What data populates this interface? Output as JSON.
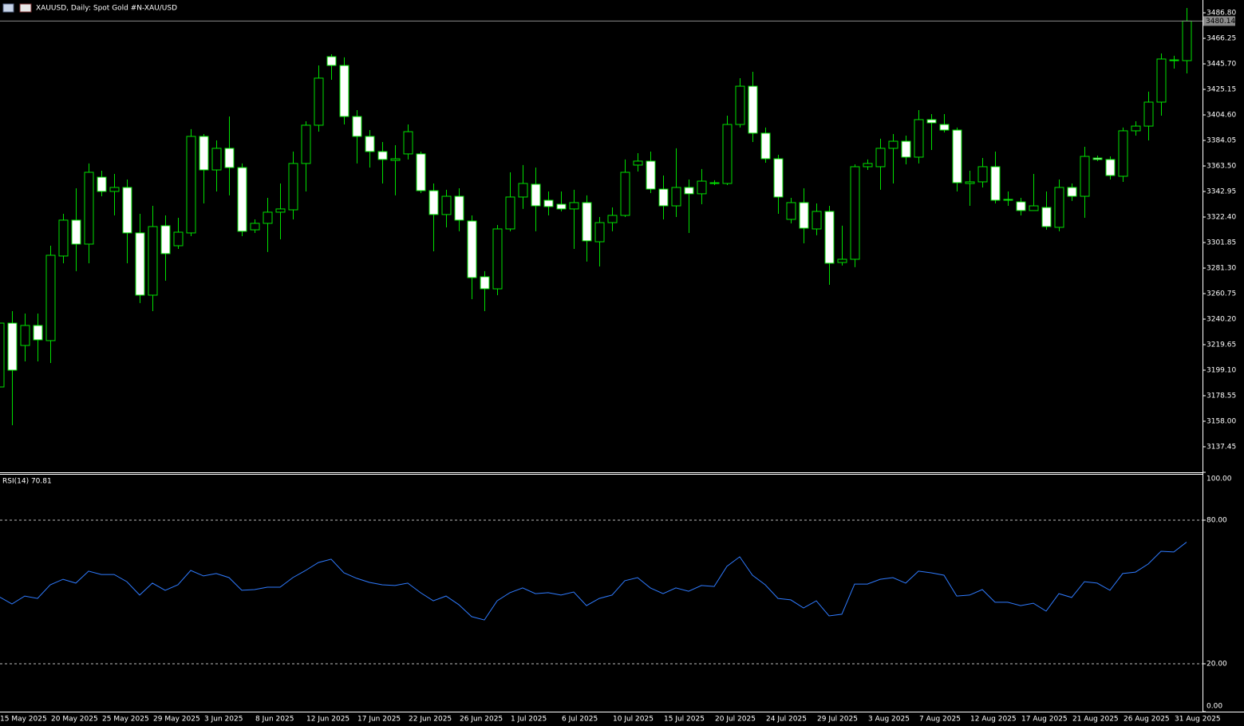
{
  "header": {
    "title": "XAUUSD, Daily:  Spot Gold #N-XAU/USD"
  },
  "chart_data": [
    {
      "type": "candlestick",
      "categories": [
        "15 May 2025",
        null,
        null,
        null,
        "20 May 2025",
        null,
        null,
        null,
        "25 May 2025",
        null,
        null,
        null,
        "29 May 2025",
        null,
        null,
        null,
        "3 Jun 2025",
        null,
        null,
        null,
        "8 Jun 2025",
        null,
        null,
        null,
        "12 Jun 2025",
        null,
        null,
        null,
        "17 Jun 2025",
        null,
        null,
        null,
        "22 Jun 2025",
        null,
        null,
        null,
        "26 Jun 2025",
        null,
        null,
        null,
        "1 Jul 2025",
        null,
        null,
        null,
        "6 Jul 2025",
        null,
        null,
        null,
        "10 Jul 2025",
        null,
        null,
        null,
        "15 Jul 2025",
        null,
        null,
        null,
        "20 Jul 2025",
        null,
        null,
        null,
        "24 Jul 2025",
        null,
        null,
        null,
        "29 Jul 2025",
        null,
        null,
        null,
        "3 Aug 2025",
        null,
        null,
        null,
        "7 Aug 2025",
        null,
        null,
        null,
        "12 Aug 2025",
        null,
        null,
        null,
        "17 Aug 2025",
        null,
        null,
        null,
        "21 Aug 2025",
        null,
        null,
        null,
        "26 Aug 2025",
        null,
        null,
        null,
        "31 Aug 2025",
        null
      ],
      "open": [
        3185.6,
        3237.0,
        3219.0,
        3235.1,
        3222.9,
        3291.0,
        3319.9,
        3300.6,
        3354.5,
        3343.0,
        3346.2,
        3309.6,
        3259.5,
        3315.4,
        3299.3,
        3309.6,
        3387.3,
        3360.3,
        3377.7,
        3362.2,
        3312.1,
        3317.3,
        3326.3,
        3328.2,
        3365.5,
        3396.3,
        3451.5,
        3444.4,
        3403.3,
        3387.3,
        3375.1,
        3368.0,
        3373.2,
        3373.2,
        3343.6,
        3324.4,
        3339.1,
        3319.2,
        3274.3,
        3264.6,
        3312.8,
        3338.5,
        3348.8,
        3335.9,
        3332.7,
        3328.9,
        3334.0,
        3302.5,
        3317.9,
        3323.7,
        3364.2,
        3367.4,
        3344.9,
        3331.4,
        3346.2,
        3341.1,
        3349.4,
        3349.4,
        3396.9,
        3427.7,
        3389.9,
        3369.3,
        3320.5,
        3334.0,
        3312.8,
        3326.9,
        3285.8,
        3288.4,
        3362.9,
        3362.9,
        3377.7,
        3383.4,
        3370.6,
        3400.8,
        3396.9,
        3392.4,
        3349.4,
        3350.7,
        3362.9,
        3336.6,
        3334.6,
        3327.6,
        3330.1,
        3314.1,
        3346.2,
        3339.1,
        3369.9,
        3368.7,
        3355.2,
        3391.8,
        3395.6,
        3414.9,
        3448.3,
        3448.3
      ],
      "high": [
        3240.2,
        3246.6,
        3244.7,
        3244.7,
        3299.3,
        3325.0,
        3345.5,
        3365.5,
        3359.7,
        3357.1,
        3352.6,
        3325.0,
        3331.4,
        3323.7,
        3321.8,
        3393.1,
        3389.2,
        3384.1,
        3403.3,
        3365.5,
        3320.5,
        3337.8,
        3349.4,
        3375.1,
        3399.5,
        3444.4,
        3453.4,
        3450.9,
        3408.5,
        3392.4,
        3382.8,
        3380.2,
        3396.9,
        3375.1,
        3349.4,
        3344.3,
        3345.5,
        3323.7,
        3278.8,
        3316.0,
        3358.4,
        3364.2,
        3362.2,
        3343.0,
        3343.0,
        3344.3,
        3339.8,
        3322.4,
        3330.1,
        3368.7,
        3373.8,
        3375.1,
        3355.8,
        3377.7,
        3352.6,
        3361.0,
        3352.0,
        3404.0,
        3434.2,
        3439.3,
        3394.4,
        3372.5,
        3337.8,
        3345.5,
        3333.3,
        3331.4,
        3315.4,
        3364.8,
        3368.7,
        3385.4,
        3389.2,
        3387.9,
        3408.5,
        3405.3,
        3405.3,
        3394.4,
        3359.7,
        3369.9,
        3375.1,
        3343.0,
        3337.8,
        3357.1,
        3343.0,
        3352.6,
        3349.4,
        3378.9,
        3371.9,
        3371.2,
        3394.4,
        3399.5,
        3423.3,
        3454.1,
        3452.2,
        3490.7
      ],
      "low": [
        3182.4,
        3154.8,
        3206.2,
        3206.2,
        3204.9,
        3285.2,
        3278.8,
        3285.2,
        3339.1,
        3323.7,
        3285.2,
        3253.1,
        3246.6,
        3271.1,
        3296.7,
        3307.0,
        3333.3,
        3343.0,
        3339.8,
        3307.0,
        3309.6,
        3294.2,
        3304.4,
        3320.5,
        3343.0,
        3391.1,
        3432.9,
        3396.9,
        3365.5,
        3362.2,
        3349.4,
        3339.8,
        3368.7,
        3341.7,
        3294.8,
        3314.1,
        3310.9,
        3256.3,
        3246.6,
        3259.5,
        3310.9,
        3328.9,
        3310.9,
        3323.7,
        3326.9,
        3296.7,
        3286.5,
        3282.6,
        3310.9,
        3322.4,
        3359.0,
        3341.7,
        3320.5,
        3322.4,
        3309.6,
        3332.7,
        3348.1,
        3348.1,
        3394.4,
        3382.8,
        3366.1,
        3325.0,
        3317.3,
        3301.2,
        3307.7,
        3267.8,
        3283.3,
        3282.0,
        3360.3,
        3344.3,
        3349.4,
        3364.8,
        3365.5,
        3376.4,
        3390.5,
        3343.0,
        3331.4,
        3346.2,
        3333.3,
        3331.4,
        3323.7,
        3328.9,
        3312.2,
        3310.9,
        3335.3,
        3321.8,
        3367.4,
        3352.6,
        3350.7,
        3387.9,
        3384.1,
        3404.0,
        3441.9,
        3438.0
      ],
      "close": [
        3237.0,
        3199.1,
        3235.1,
        3223.5,
        3291.6,
        3319.9,
        3300.6,
        3358.4,
        3343.0,
        3346.2,
        3309.6,
        3259.5,
        3314.7,
        3292.9,
        3310.2,
        3387.3,
        3360.3,
        3377.7,
        3362.2,
        3310.9,
        3317.3,
        3326.3,
        3328.9,
        3365.5,
        3396.3,
        3434.2,
        3444.4,
        3403.3,
        3387.3,
        3375.1,
        3368.7,
        3369.3,
        3391.1,
        3343.6,
        3324.4,
        3339.1,
        3319.9,
        3273.6,
        3264.6,
        3312.8,
        3338.5,
        3349.4,
        3331.4,
        3330.8,
        3328.9,
        3334.0,
        3303.2,
        3317.9,
        3323.7,
        3358.4,
        3367.4,
        3344.9,
        3331.4,
        3346.2,
        3341.1,
        3351.3,
        3350.0,
        3396.9,
        3427.7,
        3389.9,
        3369.3,
        3338.5,
        3334.0,
        3313.4,
        3326.9,
        3285.2,
        3288.4,
        3362.9,
        3365.5,
        3377.7,
        3383.4,
        3370.6,
        3400.8,
        3398.2,
        3392.4,
        3350.0,
        3350.7,
        3362.9,
        3335.9,
        3335.9,
        3327.6,
        3331.4,
        3314.7,
        3346.2,
        3339.1,
        3371.2,
        3368.7,
        3355.8,
        3391.8,
        3395.6,
        3414.9,
        3449.6,
        3448.9,
        3480.14
      ],
      "last_price": 3480.14,
      "ylim": [
        3116.9,
        3497.1
      ],
      "yticks": [
        {
          "value": 3486.8,
          "label": "3486.80"
        },
        {
          "value": 3466.25,
          "label": "3466.25"
        },
        {
          "value": 3445.7,
          "label": "3445.70"
        },
        {
          "value": 3425.15,
          "label": "3425.15"
        },
        {
          "value": 3404.6,
          "label": "3404.60"
        },
        {
          "value": 3384.05,
          "label": "3384.05"
        },
        {
          "value": 3363.5,
          "label": "3363.50"
        },
        {
          "value": 3342.95,
          "label": "3342.95"
        },
        {
          "value": 3322.4,
          "label": "3322.40"
        },
        {
          "value": 3301.85,
          "label": "3301.85"
        },
        {
          "value": 3281.3,
          "label": "3281.30"
        },
        {
          "value": 3260.75,
          "label": "3260.75"
        },
        {
          "value": 3240.2,
          "label": "3240.20"
        },
        {
          "value": 3219.65,
          "label": "3219.65"
        },
        {
          "value": 3199.1,
          "label": "3199.10"
        },
        {
          "value": 3178.55,
          "label": "3178.55"
        },
        {
          "value": 3158,
          "label": "3158.00"
        },
        {
          "value": 3137.45,
          "label": "3137.45"
        }
      ],
      "wick_color": "#00e000",
      "up_fill": "#000000",
      "down_fill": "#ffffff",
      "last_price_color": "#8a8a8a"
    },
    {
      "type": "line",
      "title": "RSI(14) 70.81",
      "series": [
        {
          "name": "RSI(14)",
          "color": "#2f7bff",
          "values": [
            48.0,
            45.0,
            48.3,
            47.3,
            53.0,
            55.3,
            53.7,
            58.7,
            57.3,
            57.3,
            54.3,
            48.7,
            53.7,
            50.7,
            53.0,
            59.0,
            56.7,
            57.7,
            56.0,
            50.7,
            51.0,
            52.0,
            52.0,
            56.0,
            59.0,
            62.3,
            63.7,
            58.0,
            55.7,
            54.0,
            53.0,
            52.7,
            53.7,
            49.7,
            46.3,
            48.3,
            44.7,
            39.7,
            38.3,
            46.3,
            49.7,
            51.7,
            49.3,
            49.7,
            48.7,
            50.0,
            44.3,
            47.3,
            48.7,
            54.7,
            56.0,
            51.7,
            49.3,
            51.7,
            50.3,
            52.7,
            52.3,
            60.7,
            64.7,
            57.0,
            53.0,
            47.3,
            46.7,
            43.3,
            46.3,
            40.0,
            40.7,
            53.3,
            53.3,
            55.3,
            56.0,
            53.7,
            58.7,
            58.0,
            57.0,
            48.3,
            48.7,
            51.0,
            45.7,
            45.7,
            44.3,
            45.3,
            42.0,
            49.3,
            47.7,
            54.3,
            53.7,
            50.7,
            57.7,
            58.3,
            61.7,
            67.0,
            66.7,
            70.81
          ]
        }
      ],
      "ylim": [
        0,
        100
      ],
      "yticks": [
        {
          "value": 100,
          "label": "100.00"
        },
        {
          "value": 80,
          "label": "80.00"
        },
        {
          "value": 20,
          "label": "20.00"
        },
        {
          "value": 0,
          "label": "0.00"
        }
      ],
      "levels": [
        80,
        20
      ]
    }
  ]
}
